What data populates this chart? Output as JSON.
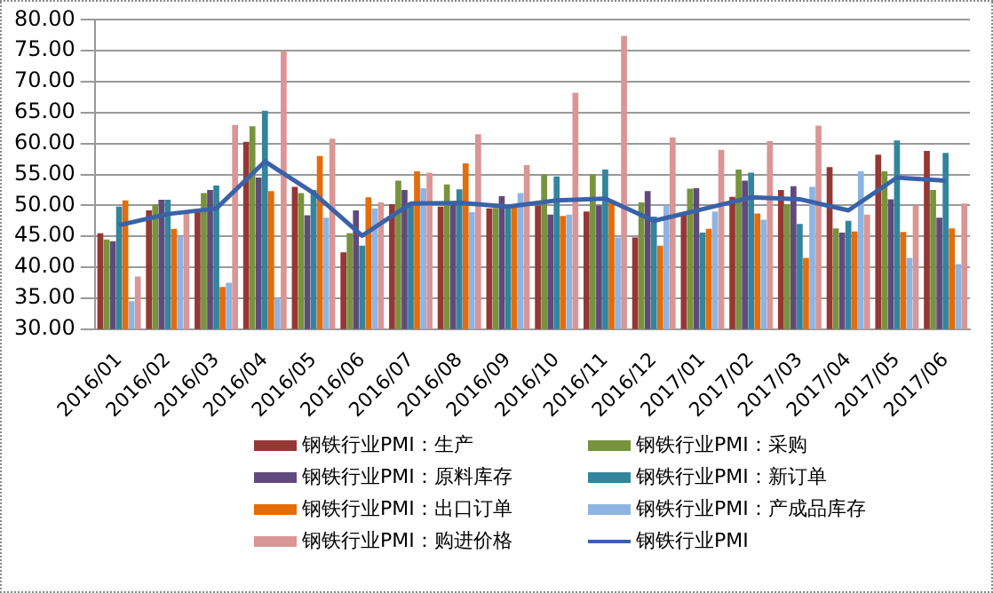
{
  "chart_data": {
    "type": "bar",
    "categories": [
      "2016/01",
      "2016/02",
      "2016/03",
      "2016/04",
      "2016/05",
      "2016/06",
      "2016/07",
      "2016/08",
      "2016/09",
      "2016/10",
      "2016/11",
      "2016/12",
      "2017/01",
      "2017/02",
      "2017/03",
      "2017/04",
      "2017/05",
      "2017/06"
    ],
    "series": [
      {
        "name": "钢铁行业PMI：生产",
        "color": "#953735",
        "values": [
          45.5,
          49.2,
          49.0,
          60.3,
          53.0,
          42.4,
          50.2,
          49.8,
          49.5,
          50.0,
          49.0,
          44.8,
          48.9,
          51.4,
          52.5,
          56.2,
          58.2,
          58.8
        ]
      },
      {
        "name": "钢铁行业PMI：采购",
        "color": "#77933c",
        "values": [
          44.5,
          50.2,
          52.0,
          62.8,
          52.0,
          45.5,
          54.0,
          53.4,
          49.6,
          55.0,
          55.0,
          50.5,
          52.7,
          55.8,
          50.2,
          46.3,
          55.5,
          52.5
        ]
      },
      {
        "name": "钢铁行业PMI：原料库存",
        "color": "#604a7b",
        "values": [
          44.2,
          50.9,
          52.5,
          54.5,
          48.4,
          49.2,
          52.5,
          50.5,
          51.5,
          48.5,
          50.0,
          52.3,
          52.8,
          54.0,
          53.1,
          45.6,
          51.0,
          48.0
        ]
      },
      {
        "name": "钢铁行业PMI：新订单",
        "color": "#31859c",
        "values": [
          49.8,
          50.9,
          53.2,
          65.3,
          52.5,
          43.5,
          50.5,
          52.6,
          49.6,
          54.7,
          55.8,
          48.2,
          45.6,
          55.3,
          47.0,
          47.5,
          60.5,
          58.5
        ]
      },
      {
        "name": "钢铁行业PMI：出口订单",
        "color": "#e46c0a",
        "values": [
          50.8,
          46.2,
          36.8,
          52.3,
          58.0,
          51.3,
          55.5,
          56.8,
          50.0,
          48.3,
          50.5,
          43.5,
          46.2,
          48.7,
          41.5,
          45.8,
          45.7,
          46.3
        ]
      },
      {
        "name": "钢铁行业PMI：产成品库存",
        "color": "#8eb4e3",
        "values": [
          34.5,
          45.0,
          37.5,
          35.0,
          48.0,
          49.5,
          52.8,
          48.9,
          52.0,
          48.5,
          44.8,
          50.0,
          49.0,
          47.7,
          53.0,
          55.5,
          41.5,
          40.5
        ]
      },
      {
        "name": "钢铁行业PMI：购进价格",
        "color": "#d99694",
        "values": [
          38.5,
          49.0,
          63.0,
          75.0,
          60.8,
          50.5,
          55.3,
          61.5,
          56.5,
          68.2,
          77.4,
          61.0,
          59.0,
          60.4,
          62.9,
          48.5,
          50.0,
          50.3
        ]
      },
      {
        "name": "钢铁行业PMI",
        "type": "line",
        "color": "#3a62a8",
        "values": [
          46.8,
          48.6,
          49.5,
          57.1,
          52.0,
          45.1,
          50.3,
          50.4,
          49.8,
          50.8,
          51.1,
          47.5,
          49.4,
          51.3,
          51.0,
          49.2,
          54.5,
          54.0
        ]
      }
    ],
    "ylim": [
      30,
      80
    ],
    "yticks": [
      {
        "value": 30,
        "label": "30.00"
      },
      {
        "value": 35,
        "label": "35.00"
      },
      {
        "value": 40,
        "label": "40.00"
      },
      {
        "value": 45,
        "label": "45.00"
      },
      {
        "value": 50,
        "label": "50.00"
      },
      {
        "value": 55,
        "label": "55.00"
      },
      {
        "value": 60,
        "label": "60.00"
      },
      {
        "value": 65,
        "label": "65.00"
      },
      {
        "value": 70,
        "label": "70.00"
      },
      {
        "value": 75,
        "label": "75.00"
      },
      {
        "value": 80,
        "label": "80.00"
      }
    ],
    "grid": "y",
    "legend": "bottom",
    "marker": "none"
  }
}
